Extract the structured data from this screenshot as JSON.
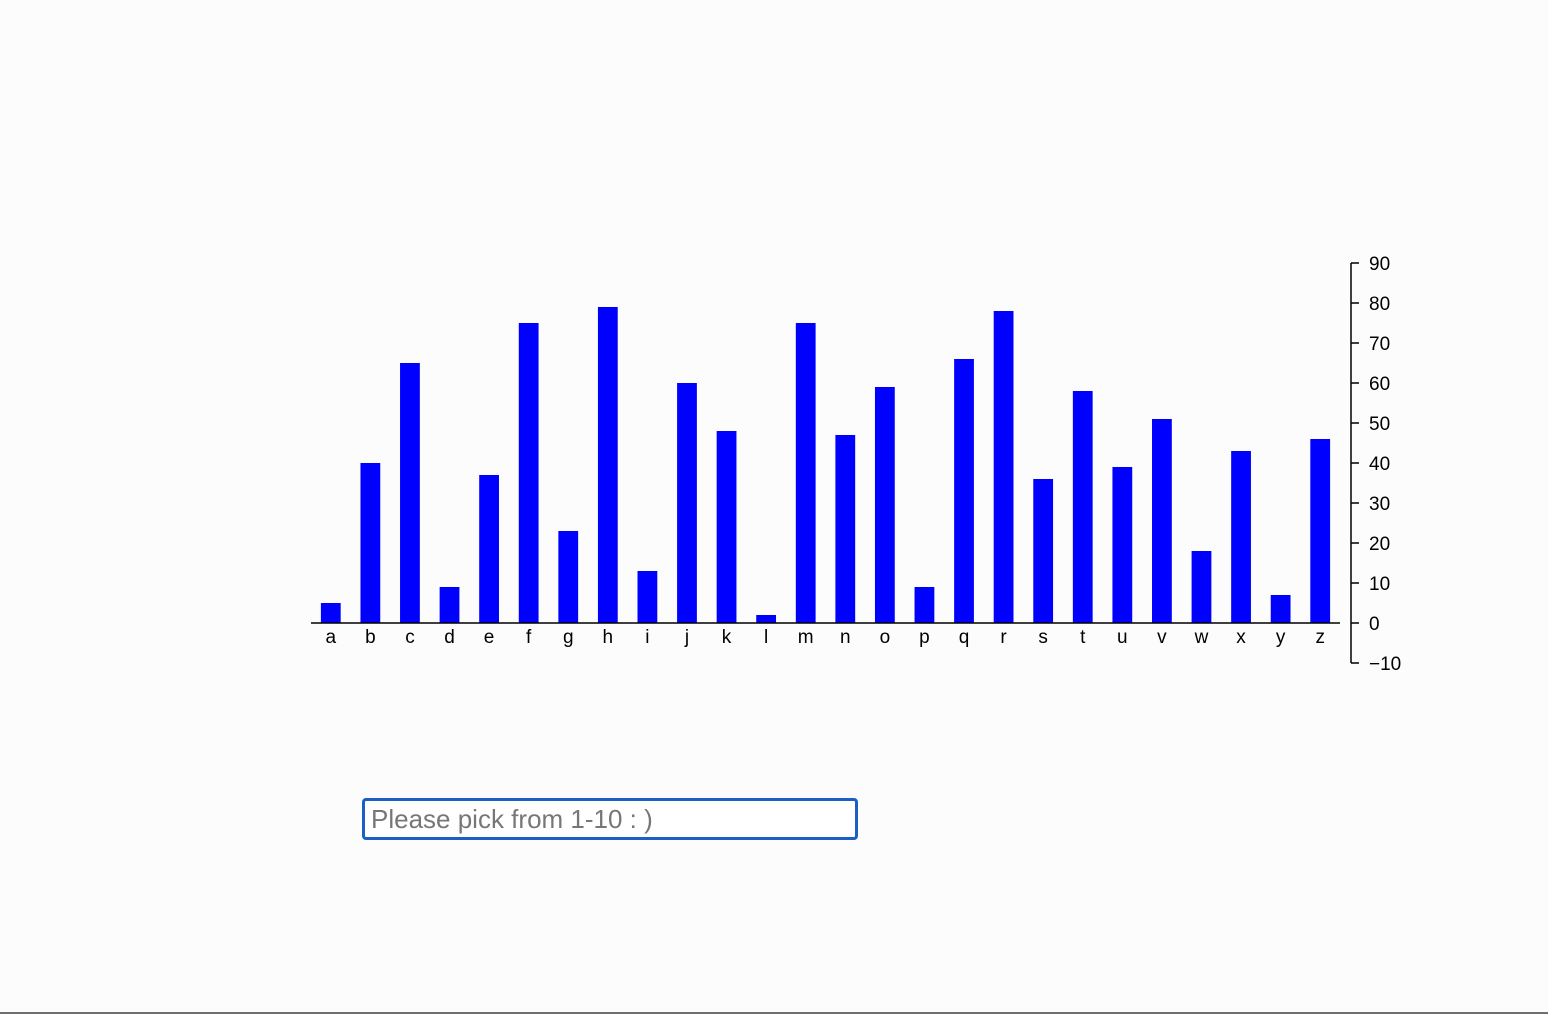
{
  "chart_data": {
    "type": "bar",
    "categories": [
      "a",
      "b",
      "c",
      "d",
      "e",
      "f",
      "g",
      "h",
      "i",
      "j",
      "k",
      "l",
      "m",
      "n",
      "o",
      "p",
      "q",
      "r",
      "s",
      "t",
      "u",
      "v",
      "w",
      "x",
      "y",
      "z"
    ],
    "values": [
      5,
      40,
      65,
      9,
      37,
      75,
      23,
      79,
      13,
      60,
      48,
      2,
      75,
      47,
      59,
      9,
      66,
      78,
      36,
      58,
      39,
      51,
      18,
      43,
      7,
      46
    ],
    "ylim": [
      -10,
      90
    ],
    "yticks": [
      -10,
      0,
      10,
      20,
      30,
      40,
      50,
      60,
      70,
      80,
      90
    ],
    "ytick_labels": [
      "−10",
      "0",
      "10",
      "20",
      "30",
      "40",
      "50",
      "60",
      "70",
      "80",
      "90"
    ],
    "y_axis_side": "right",
    "bar_color": "#0000ff",
    "grid": false
  },
  "input": {
    "placeholder": "Please pick from 1-10 : )",
    "value": ""
  }
}
